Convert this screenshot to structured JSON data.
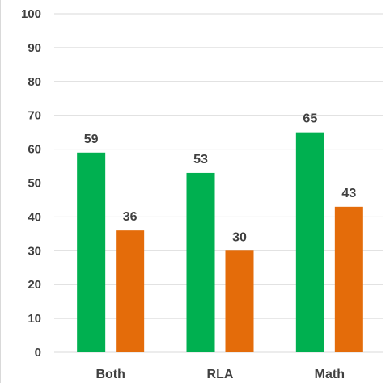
{
  "chart_data": {
    "type": "bar",
    "title": "",
    "xlabel": "",
    "ylabel": "",
    "categories": [
      "Both",
      "RLA",
      "Math"
    ],
    "series": [
      {
        "color": "#00b050",
        "values": [
          59,
          53,
          65
        ]
      },
      {
        "color": "#e46c0a",
        "values": [
          36,
          30,
          43
        ]
      }
    ],
    "ylim": [
      0,
      100
    ],
    "yticks": [
      0,
      10,
      20,
      30,
      40,
      50,
      60,
      70,
      80,
      90,
      100
    ],
    "grid": true,
    "legend": "none",
    "data_labels": true
  },
  "colors": {
    "gridline": "#d9d9d9",
    "axis": "#d9d9d9",
    "label_text": "#404040"
  }
}
